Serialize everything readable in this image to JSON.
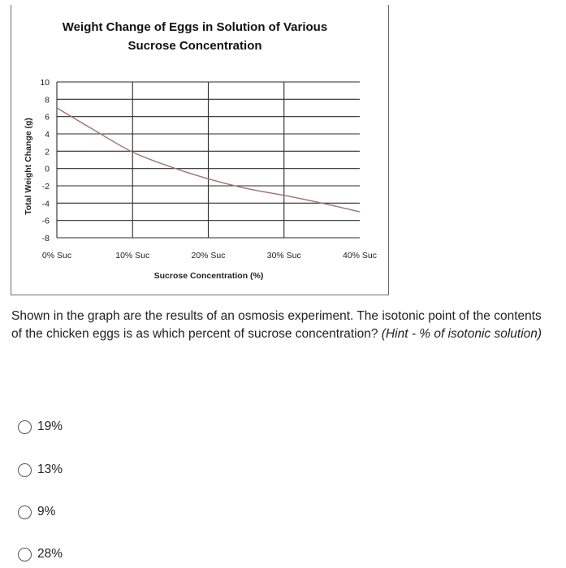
{
  "chart_data": {
    "type": "line",
    "title_lines": [
      "Weight Change of Eggs in Solution of Various",
      "Sucrose Concentration"
    ],
    "xlabel": "Sucrose Concentration (%)",
    "ylabel": "Total Weight Change (g)",
    "categories": [
      "0% Suc",
      "10% Suc",
      "20% Suc",
      "30% Suc",
      "40% Suc"
    ],
    "x": [
      0,
      10,
      20,
      30,
      40
    ],
    "y_ticks": [
      "10",
      "8",
      "6",
      "4",
      "2",
      "0",
      "-2",
      "-4",
      "-6",
      "-8"
    ],
    "ylim": [
      -8,
      10
    ],
    "grid": true,
    "series": [
      {
        "x": [
          0,
          5,
          10,
          15,
          20,
          25,
          30,
          35,
          40
        ],
        "y": [
          7,
          4.4,
          1.9,
          0.2,
          -1.2,
          -2.3,
          -3.1,
          -4.0,
          -5.0
        ]
      }
    ],
    "line_color": "#a07075"
  },
  "question": {
    "text": "Shown in the graph are the results of an osmosis experiment. The isotonic point of the contents of the chicken eggs is as which percent of sucrose concentration? ",
    "hint": "(Hint - % of isotonic solution)"
  },
  "options": [
    "19%",
    "13%",
    "9%",
    "28%"
  ]
}
